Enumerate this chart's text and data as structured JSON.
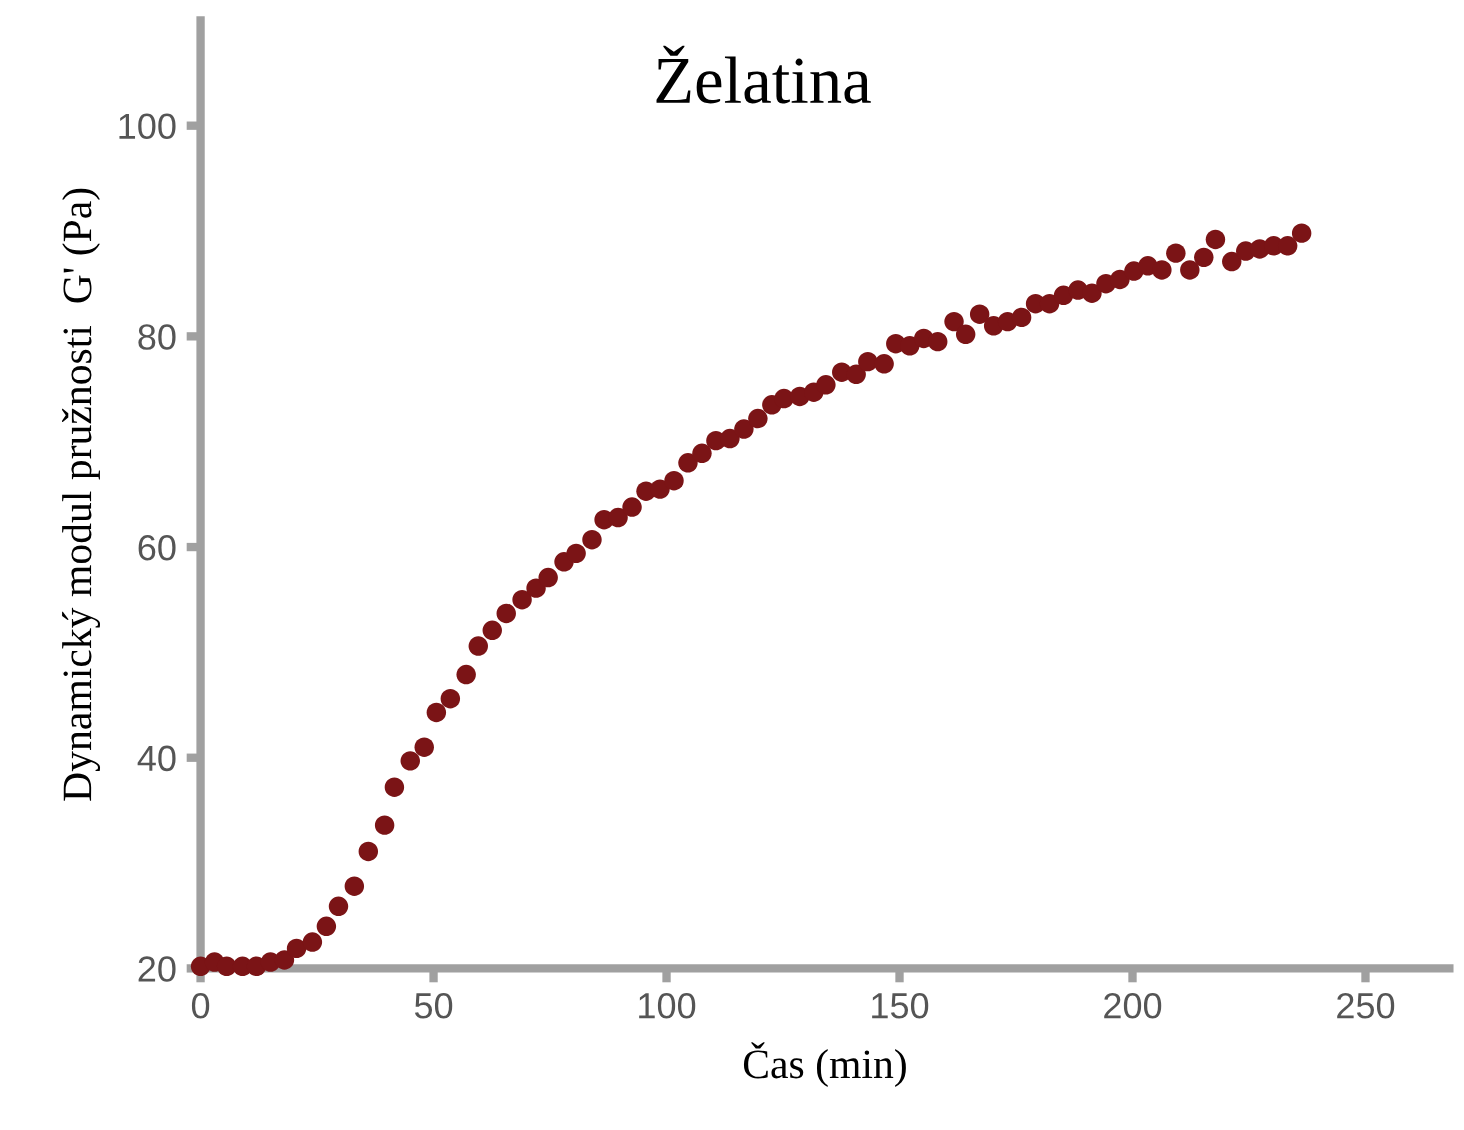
{
  "chart_data": {
    "type": "scatter",
    "title": "Želatina",
    "xlabel": "Čas (min)",
    "ylabel": "Dynamický modul pružnosti  G' (Pa)",
    "xlim": [
      0,
      268
    ],
    "ylim": [
      20,
      110
    ],
    "xticks": [
      0,
      50,
      100,
      150,
      200,
      250
    ],
    "yticks": [
      20,
      40,
      60,
      80,
      100
    ],
    "grid": false,
    "marker": "circle",
    "series": [
      {
        "color": "#7b1416",
        "x": [
          0,
          3,
          5.6,
          9,
          12,
          15,
          18,
          20.6,
          24,
          27,
          29.6,
          33,
          36,
          39.5,
          41.6,
          45,
          48,
          50.6,
          53.6,
          57,
          59.6,
          62.6,
          65.6,
          69,
          72,
          74.6,
          78,
          80.6,
          84,
          86.6,
          89.6,
          92.6,
          95.6,
          98.6,
          101.6,
          104.6,
          107.6,
          110.6,
          113.6,
          116.6,
          119.6,
          122.6,
          125.2,
          128.6,
          131.6,
          134.2,
          137.6,
          140.7,
          143.2,
          146.7,
          149.2,
          152.2,
          155.2,
          158.2,
          161.7,
          164.2,
          167.2,
          170.2,
          173.2,
          176.2,
          179.2,
          182.2,
          185.2,
          188.3,
          191.3,
          194.3,
          197.3,
          200.3,
          203.3,
          206.3,
          209.3,
          212.3,
          215.3,
          217.8,
          221.3,
          224.3,
          227.3,
          230.3,
          233.3,
          236.3
        ],
        "values": [
          20.2,
          20.6,
          20.2,
          20.2,
          20.2,
          20.6,
          20.8,
          21.9,
          22.5,
          24,
          25.9,
          27.8,
          31.1,
          33.6,
          37.2,
          39.7,
          41,
          44.3,
          45.6,
          47.9,
          50.6,
          52.1,
          53.7,
          55,
          56.1,
          57.1,
          58.6,
          59.4,
          60.7,
          62.6,
          62.8,
          63.8,
          65.3,
          65.5,
          66.3,
          68,
          68.9,
          70.1,
          70.3,
          71.2,
          72.2,
          73.5,
          74.1,
          74.3,
          74.7,
          75.4,
          76.6,
          76.4,
          77.6,
          77.4,
          79.3,
          79.1,
          79.8,
          79.5,
          81.4,
          80.2,
          82.1,
          81,
          81.4,
          81.8,
          83.1,
          83.1,
          83.9,
          84.4,
          84.1,
          85,
          85.4,
          86.2,
          86.7,
          86.3,
          87.9,
          86.3,
          87.5,
          89.2,
          87.1,
          88.1,
          88.3,
          88.6,
          88.6,
          89.8
        ]
      }
    ]
  }
}
